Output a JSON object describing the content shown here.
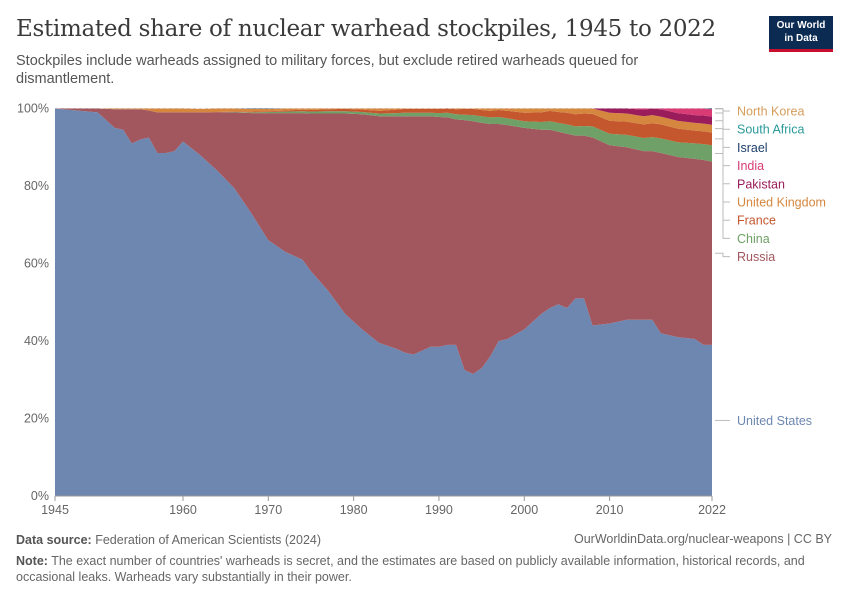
{
  "header": {
    "title": "Estimated share of nuclear warhead stockpiles, 1945 to 2022",
    "subtitle": "Stockpiles include warheads assigned to military forces, but exclude retired warheads queued for dismantlement.",
    "logo_line1": "Our World",
    "logo_line2": "in Data"
  },
  "footer": {
    "source_label": "Data source:",
    "source_text": "Federation of American Scientists (2024)",
    "url": "OurWorldinData.org/nuclear-weapons | CC BY",
    "note_label": "Note:",
    "note_text": "The exact number of countries' warheads is secret, and the estimates are based on publicly available information, historical records, and occasional leaks. Warheads vary substantially in their power."
  },
  "colors": {
    "United States": "#6d87b0",
    "Russia": "#a2565d",
    "China": "#6fa067",
    "France": "#c4572d",
    "United Kingdom": "#d6873f",
    "Pakistan": "#9a1c5b",
    "India": "#d93b75",
    "Israel": "#1d3f6a",
    "South Africa": "#2a9a9a",
    "North Korea": "#d59d5c"
  },
  "chart_data": {
    "type": "area",
    "stacked": true,
    "normalized": true,
    "title": "Estimated share of nuclear warhead stockpiles, 1945 to 2022",
    "x": [
      1945,
      1950,
      1952,
      1953,
      1954,
      1955,
      1956,
      1957,
      1958,
      1959,
      1960,
      1962,
      1964,
      1966,
      1968,
      1970,
      1972,
      1974,
      1975,
      1977,
      1979,
      1981,
      1983,
      1985,
      1986,
      1987,
      1988,
      1989,
      1990,
      1991,
      1992,
      1993,
      1994,
      1995,
      1996,
      1997,
      1998,
      2000,
      2002,
      2003,
      2004,
      2005,
      2006,
      2007,
      2008,
      2010,
      2012,
      2014,
      2015,
      2016,
      2018,
      2020,
      2021,
      2022
    ],
    "x_ticks": [
      "1945",
      "1960",
      "1970",
      "1980",
      "1990",
      "2000",
      "2010",
      "2022"
    ],
    "y_ticks": [
      "0%",
      "20%",
      "40%",
      "60%",
      "80%",
      "100%"
    ],
    "ylim": [
      0,
      100
    ],
    "grid": "horizontal dashed",
    "legend": "right, labels aligned to series",
    "series": [
      {
        "name": "United States",
        "values": [
          100,
          99,
          95,
          94.5,
          91,
          92,
          92.5,
          88.5,
          88.5,
          89,
          91.5,
          88,
          84,
          79.5,
          73,
          66,
          63,
          61,
          58,
          53,
          47,
          43,
          39.5,
          38,
          37,
          36.5,
          37.5,
          38.5,
          38.5,
          39,
          39,
          32.5,
          31.5,
          33,
          36,
          40,
          40.5,
          43,
          47,
          48.5,
          49.5,
          48.5,
          51,
          51,
          44,
          44.5,
          45.5,
          45.5,
          45.5,
          42,
          41,
          40.5,
          39,
          39
        ]
      },
      {
        "name": "Russia",
        "values": [
          0,
          1,
          4.8,
          5.3,
          8.8,
          7.8,
          7.0,
          10.5,
          10.5,
          10,
          7.5,
          11,
          15,
          19.5,
          25.8,
          32.8,
          35.8,
          37.8,
          40.7,
          45.7,
          51.7,
          55.5,
          58.5,
          60,
          61,
          61.5,
          60.5,
          59.5,
          59.3,
          58.7,
          58.2,
          64.5,
          65.2,
          63.3,
          60,
          56,
          55.2,
          52,
          47.5,
          46,
          44.5,
          45,
          42,
          42,
          48.5,
          46,
          44.5,
          43.5,
          43.5,
          46.5,
          46.5,
          46.5,
          47.7,
          47.3
        ]
      },
      {
        "name": "China",
        "values": [
          0,
          0,
          0,
          0,
          0,
          0,
          0,
          0,
          0,
          0,
          0,
          0,
          0,
          0.1,
          0.2,
          0.3,
          0.4,
          0.5,
          0.5,
          0.6,
          0.6,
          0.6,
          0.7,
          0.8,
          0.9,
          0.9,
          0.9,
          0.9,
          1,
          1.2,
          1.3,
          1.4,
          1.6,
          1.7,
          1.7,
          1.8,
          1.8,
          1.7,
          2,
          2.2,
          2.3,
          2.4,
          2.4,
          2.5,
          2.9,
          3,
          3.2,
          3.4,
          3.6,
          3.8,
          3.8,
          4,
          4.1,
          4.2
        ]
      },
      {
        "name": "France",
        "values": [
          0,
          0,
          0,
          0,
          0,
          0,
          0,
          0,
          0,
          0,
          0,
          0,
          0.1,
          0.1,
          0.2,
          0.2,
          0.3,
          0.4,
          0.4,
          0.5,
          0.6,
          0.6,
          0.7,
          0.9,
          1,
          1,
          1,
          1,
          1.1,
          1.2,
          1.3,
          1.5,
          1.6,
          1.6,
          1.7,
          1.8,
          1.9,
          2.2,
          2.5,
          2.7,
          2.8,
          3,
          3.1,
          3.2,
          3.2,
          3.3,
          3.4,
          3.5,
          3.6,
          3.6,
          3.5,
          3.3,
          3.3,
          3.3
        ]
      },
      {
        "name": "United Kingdom",
        "values": [
          0,
          0,
          0.2,
          0.2,
          0.2,
          0.2,
          0.5,
          1,
          1,
          1,
          1,
          0.9,
          0.9,
          0.8,
          0.7,
          0.6,
          0.5,
          0.6,
          0.6,
          0.6,
          0.6,
          0.8,
          0.9,
          0.8,
          0.8,
          0.8,
          0.8,
          0.8,
          0.8,
          0.7,
          0.6,
          0.6,
          0.6,
          0.6,
          0.9,
          1.1,
          1.3,
          1.8,
          2,
          1.9,
          2,
          2,
          2,
          2,
          2.1,
          2.1,
          2.1,
          2.1,
          2.1,
          2,
          2,
          2,
          2,
          2
        ]
      },
      {
        "name": "Pakistan",
        "values": [
          0,
          0,
          0,
          0,
          0,
          0,
          0,
          0,
          0,
          0,
          0,
          0,
          0,
          0,
          0,
          0,
          0,
          0,
          0,
          0,
          0,
          0,
          0,
          0,
          0,
          0,
          0,
          0,
          0,
          0,
          0,
          0,
          0,
          0,
          0,
          0,
          0.1,
          0.2,
          0.3,
          0.3,
          0.4,
          0.5,
          0.6,
          0.7,
          0.9,
          1.2,
          1.5,
          1.7,
          1.8,
          1.9,
          2,
          2,
          2.1,
          2.1
        ]
      },
      {
        "name": "India",
        "values": [
          0,
          0,
          0,
          0,
          0,
          0,
          0,
          0,
          0,
          0,
          0,
          0,
          0,
          0,
          0,
          0,
          0,
          0,
          0,
          0,
          0,
          0,
          0,
          0,
          0,
          0,
          0,
          0,
          0,
          0,
          0,
          0,
          0,
          0,
          0,
          0.1,
          0.1,
          0.2,
          0.3,
          0.4,
          0.4,
          0.5,
          0.6,
          0.7,
          0.9,
          1.1,
          1.3,
          1.4,
          1.5,
          1.6,
          1.6,
          1.7,
          1.8,
          1.9
        ]
      },
      {
        "name": "Israel",
        "values": [
          0,
          0,
          0,
          0,
          0,
          0,
          0,
          0,
          0,
          0,
          0,
          0,
          0,
          0,
          0.1,
          0.1,
          0.2,
          0.3,
          0.3,
          0.4,
          0.4,
          0.4,
          0.5,
          0.5,
          0.6,
          0.6,
          0.6,
          0.6,
          0.6,
          0.6,
          0.6,
          0.7,
          0.7,
          0.8,
          0.8,
          0.9,
          0.9,
          0.9,
          1,
          1,
          1,
          1,
          1,
          1,
          1,
          1.1,
          1.2,
          1.2,
          1.3,
          1.3,
          1.3,
          1.3,
          1.3,
          1.3
        ]
      },
      {
        "name": "South Africa",
        "values": [
          0,
          0,
          0,
          0,
          0,
          0,
          0,
          0,
          0,
          0,
          0,
          0,
          0,
          0,
          0,
          0,
          0,
          0,
          0,
          0,
          0,
          0,
          0,
          0,
          0,
          0,
          0,
          0,
          0,
          0,
          0,
          0,
          0,
          0,
          0,
          0,
          0,
          0,
          0,
          0,
          0,
          0,
          0,
          0,
          0,
          0,
          0,
          0,
          0,
          0,
          0,
          0,
          0,
          0
        ]
      },
      {
        "name": "North Korea",
        "values": [
          0,
          0,
          0,
          0,
          0,
          0,
          0,
          0,
          0,
          0,
          0,
          0,
          0,
          0,
          0,
          0,
          0,
          0,
          0,
          0,
          0,
          0,
          0,
          0,
          0,
          0,
          0,
          0,
          0,
          0,
          0,
          0,
          0,
          0,
          0,
          0,
          0,
          0,
          0,
          0,
          0,
          0,
          0.1,
          0.1,
          0.1,
          0.2,
          0.3,
          0.4,
          0.4,
          0.5,
          0.5,
          0.6,
          0.7,
          0.7
        ]
      }
    ]
  }
}
